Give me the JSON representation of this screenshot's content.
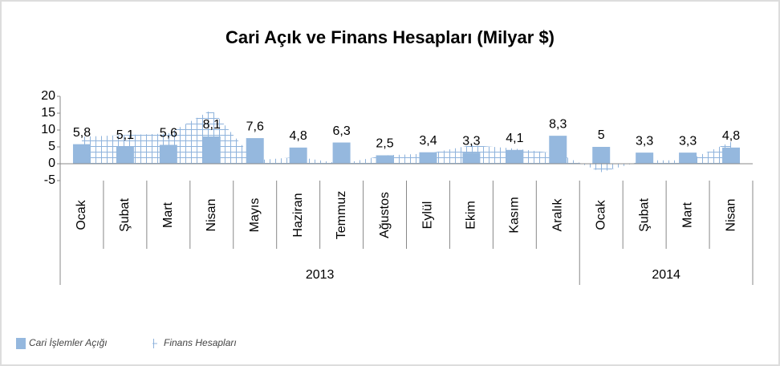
{
  "chart_data": {
    "type": "bar",
    "title": "Cari Açık ve Finans Hesapları (Milyar $)",
    "categories": [
      "Ocak",
      "Şubat",
      "Mart",
      "Nisan",
      "Mayıs",
      "Haziran",
      "Temmuz",
      "Ağustos",
      "Eylül",
      "Ekim",
      "Kasım",
      "Aralık",
      "Ocak",
      "Şubat",
      "Mart",
      "Nisan"
    ],
    "group_labels": [
      "2013",
      "2014"
    ],
    "group_sizes": [
      12,
      4
    ],
    "series": [
      {
        "name": "Cari İşlemler Açığı",
        "type": "bar",
        "color": "#95b8de",
        "values": [
          5.8,
          5.1,
          5.6,
          8.1,
          7.6,
          4.8,
          6.3,
          2.5,
          3.4,
          3.3,
          4.1,
          8.3,
          5,
          3.3,
          3.3,
          4.8
        ],
        "value_labels": [
          "5,8",
          "5,1",
          "5,6",
          "8,1",
          "7,6",
          "4,8",
          "6,3",
          "2,5",
          "3,4",
          "3,3",
          "4,1",
          "8,3",
          "5",
          "3,3",
          "3,3",
          "4,8"
        ]
      },
      {
        "name": "Finans Hesapları",
        "type": "area",
        "color": "#8fb3dc",
        "values": [
          8,
          8.5,
          9,
          16,
          1,
          2,
          0,
          2.5,
          3,
          5.5,
          4.5,
          3,
          -2.5,
          1,
          1,
          6.5
        ]
      }
    ],
    "ylim": [
      -5,
      20
    ],
    "yticks": [
      -5,
      0,
      5,
      10,
      15,
      20
    ]
  }
}
